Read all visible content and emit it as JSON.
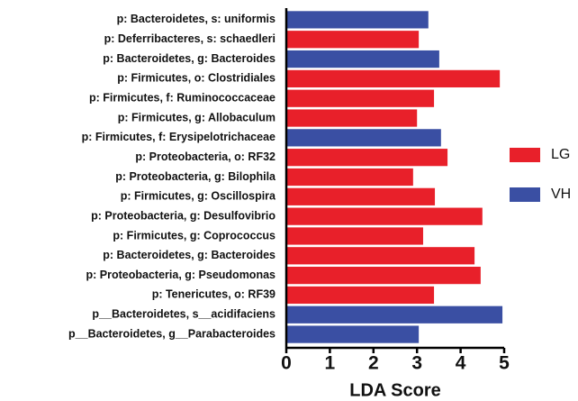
{
  "chart_data": {
    "type": "barh",
    "xlabel": "LDA Score",
    "categories": [
      "p: Bacteroidetes, s: uniformis",
      "p: Deferribacteres, s: schaedleri",
      "p: Bacteroidetes, g: Bacteroides",
      "p: Firmicutes, o: Clostridiales",
      "p: Firmicutes, f: Ruminococcaceae",
      "p: Firmicutes, g: Allobaculum",
      "p: Firmicutes, f: Erysipelotrichaceae",
      "p: Proteobacteria, o: RF32",
      "p: Proteobacteria, g: Bilophila",
      "p: Firmicutes, g: Oscillospira",
      "p: Proteobacteria, g: Desulfovibrio",
      "p: Firmicutes, g: Coprococcus",
      "p: Bacteroidetes, g: Bacteroides",
      "p: Proteobacteria, g: Pseudomonas",
      "p: Tenericutes, o: RF39",
      "p__Bacteroidetes, s__acidifaciens",
      "p__Bacteroidetes, g__Parabacteroides"
    ],
    "series": [
      {
        "name": "LG",
        "color": "#e8202a",
        "values": [
          null,
          3.04,
          null,
          4.9,
          3.39,
          3.0,
          null,
          3.7,
          2.91,
          3.41,
          4.5,
          3.14,
          4.32,
          4.46,
          3.39,
          null,
          null
        ]
      },
      {
        "name": "VH",
        "color": "#3a4fa3",
        "values": [
          3.26,
          null,
          3.51,
          null,
          null,
          null,
          3.55,
          null,
          null,
          null,
          null,
          null,
          null,
          null,
          null,
          4.96,
          3.04
        ]
      }
    ],
    "xlim": [
      0,
      5
    ],
    "xticks": [
      0,
      1,
      2,
      3,
      4,
      5
    ]
  }
}
